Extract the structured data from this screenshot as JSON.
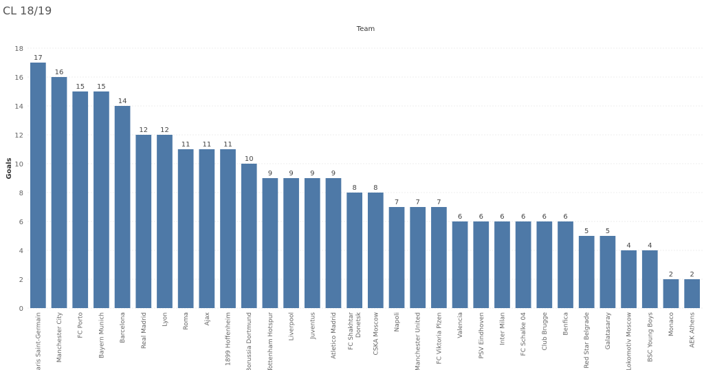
{
  "sheet": {
    "title": "CL 18/19"
  },
  "chart_data": {
    "type": "bar",
    "title": "",
    "xlabel": "Team",
    "ylabel": "Goals",
    "ylim": [
      0,
      18
    ],
    "yticks": [
      0,
      2,
      4,
      6,
      8,
      10,
      12,
      14,
      16,
      18
    ],
    "grid": true,
    "bar_color": "#4e79a7",
    "categories": [
      [
        "Paris Saint-Germain"
      ],
      [
        "Manchester City"
      ],
      [
        "FC Porto"
      ],
      [
        "Bayern Munich"
      ],
      [
        "Barcelona"
      ],
      [
        "Real Madrid"
      ],
      [
        "Lyon"
      ],
      [
        "Roma"
      ],
      [
        "Ajax"
      ],
      [
        "1899 Hoffenheim"
      ],
      [
        "Borussia Dortmund"
      ],
      [
        "Tottenham Hotspur"
      ],
      [
        "Liverpool"
      ],
      [
        "Juventus"
      ],
      [
        "Atletico Madrid"
      ],
      [
        "FC Shakhtar",
        "Donetsk"
      ],
      [
        "CSKA Moscow"
      ],
      [
        "Napoli"
      ],
      [
        "Manchester United"
      ],
      [
        "FC Viktoria Plzen"
      ],
      [
        "Valencia"
      ],
      [
        "PSV Eindhoven"
      ],
      [
        "Inter Milan"
      ],
      [
        "FC Schalke 04"
      ],
      [
        "Club Brugge"
      ],
      [
        "Benfica"
      ],
      [
        "Red Star Belgrade"
      ],
      [
        "Galatasaray"
      ],
      [
        "Lokomotiv Moscow"
      ],
      [
        "BSC Young Boys"
      ],
      [
        "Monaco"
      ],
      [
        "AEK Athens"
      ]
    ],
    "values": [
      17,
      16,
      15,
      15,
      14,
      12,
      12,
      11,
      11,
      11,
      10,
      9,
      9,
      9,
      9,
      8,
      8,
      7,
      7,
      7,
      6,
      6,
      6,
      6,
      6,
      6,
      5,
      5,
      4,
      4,
      2,
      2
    ]
  }
}
